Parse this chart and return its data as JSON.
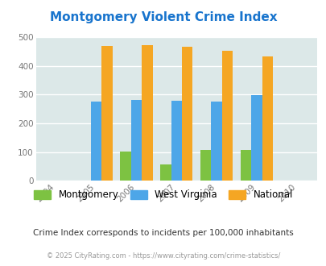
{
  "title": "Montgomery Violent Crime Index",
  "years": [
    2004,
    2005,
    2006,
    2007,
    2008,
    2009,
    2010
  ],
  "bar_years": [
    2005,
    2006,
    2007,
    2008,
    2009
  ],
  "montgomery": [
    0,
    103,
    57,
    107,
    107
  ],
  "west_virginia": [
    275,
    282,
    280,
    276,
    299
  ],
  "national": [
    470,
    473,
    467,
    453,
    432
  ],
  "color_montgomery": "#7dc242",
  "color_west_virginia": "#4da6e8",
  "color_national": "#f5a623",
  "xlim": [
    2003.5,
    2010.5
  ],
  "ylim": [
    0,
    500
  ],
  "yticks": [
    0,
    100,
    200,
    300,
    400,
    500
  ],
  "bg_color": "#dce8e8",
  "title_color": "#1874cd",
  "subtitle": "Crime Index corresponds to incidents per 100,000 inhabitants",
  "footer": "© 2025 CityRating.com - https://www.cityrating.com/crime-statistics/",
  "bar_width": 0.27,
  "legend_labels": [
    "Montgomery",
    "West Virginia",
    "National"
  ]
}
